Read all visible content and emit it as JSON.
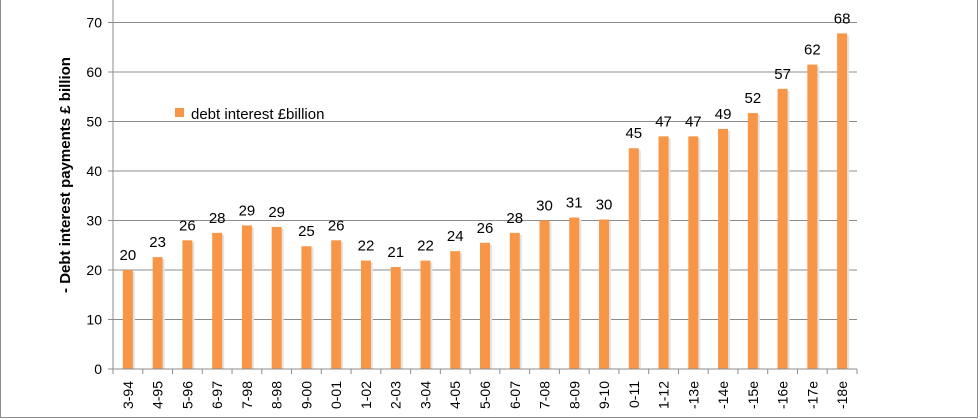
{
  "chart_data": {
    "type": "bar",
    "ylabel": "- Debt interest payments £ billion",
    "ylim": [
      0,
      70
    ],
    "yticks": [
      0,
      10,
      20,
      30,
      40,
      50,
      60,
      70
    ],
    "grid": true,
    "legend_position": "upper-left-inside",
    "categories": [
      "3-94",
      "4-95",
      "5-96",
      "6-97",
      "7-98",
      "8-98",
      "9-00",
      "0-01",
      "1-02",
      "2-03",
      "3-04",
      "4-05",
      "5-06",
      "6-07",
      "7-08",
      "8-09",
      "9-10",
      "0-11",
      "1-12",
      "-13e",
      "-14e",
      "-15e",
      "-16e",
      "-17e",
      "-18e"
    ],
    "series": [
      {
        "name": "debt interest £billion",
        "color": "#f79646",
        "values": [
          20,
          22.6,
          26,
          27.5,
          29,
          28.7,
          24.8,
          26,
          21.9,
          20.6,
          21.9,
          23.8,
          25.5,
          27.5,
          30,
          30.6,
          30.2,
          44.6,
          47,
          47,
          48.5,
          51.7,
          56.6,
          61.5,
          67.8
        ],
        "labels": [
          "20",
          "23",
          "26",
          "28",
          "29",
          "29",
          "25",
          "26",
          "22",
          "21",
          "22",
          "24",
          "26",
          "28",
          "30",
          "31",
          "30",
          "45",
          "47",
          "47",
          "49",
          "52",
          "57",
          "62",
          "68"
        ]
      }
    ]
  }
}
